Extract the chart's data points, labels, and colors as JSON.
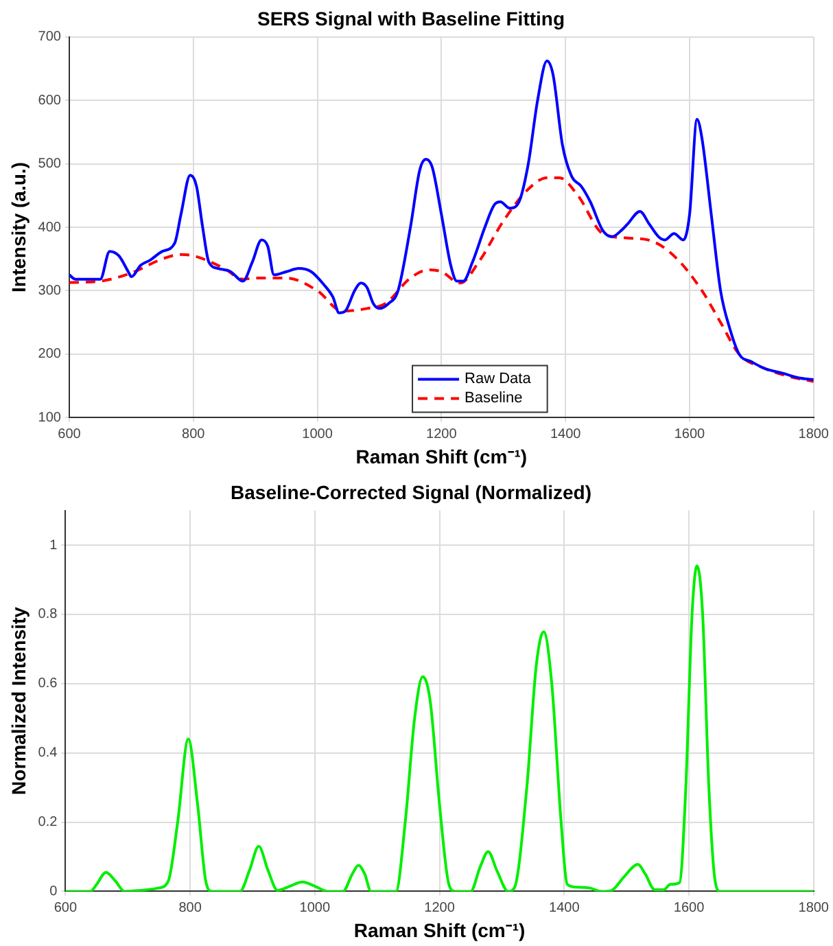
{
  "chart_data": [
    {
      "type": "line",
      "title": "SERS Signal with Baseline Fitting",
      "xlabel": "Raman Shift (cm⁻¹)",
      "ylabel": "Intensity (a.u.)",
      "xlim": [
        600,
        1800
      ],
      "xticks": [
        600,
        800,
        1000,
        1200,
        1400,
        1600,
        1800
      ],
      "ylim": [
        100,
        700
      ],
      "yticks": [
        100,
        200,
        300,
        400,
        500,
        600,
        700
      ],
      "grid": true,
      "legend": "bottom",
      "series": [
        {
          "name": "Raw Data",
          "color": "#0000ff",
          "line_style": "solid",
          "x": [
            600,
            610,
            630,
            650,
            665,
            680,
            695,
            700,
            715,
            730,
            750,
            770,
            780,
            795,
            805,
            815,
            825,
            840,
            860,
            880,
            895,
            910,
            920,
            930,
            950,
            970,
            990,
            1010,
            1025,
            1035,
            1045,
            1060,
            1070,
            1080,
            1090,
            1100,
            1115,
            1130,
            1150,
            1165,
            1175,
            1185,
            1200,
            1215,
            1225,
            1235,
            1250,
            1270,
            1285,
            1295,
            1310,
            1325,
            1340,
            1355,
            1370,
            1380,
            1395,
            1410,
            1425,
            1440,
            1460,
            1475,
            1490,
            1500,
            1520,
            1535,
            1550,
            1560,
            1575,
            1590,
            1600,
            1612,
            1620,
            1635,
            1650,
            1665,
            1680,
            1700,
            1720,
            1750,
            1780,
            1800
          ],
          "values": [
            325,
            318,
            318,
            318,
            362,
            355,
            330,
            322,
            340,
            348,
            362,
            375,
            420,
            482,
            465,
            400,
            345,
            335,
            330,
            315,
            345,
            380,
            370,
            325,
            330,
            335,
            330,
            310,
            290,
            265,
            268,
            300,
            312,
            305,
            280,
            272,
            280,
            300,
            400,
            490,
            507,
            495,
            420,
            340,
            315,
            315,
            345,
            400,
            435,
            440,
            430,
            440,
            500,
            600,
            662,
            640,
            530,
            480,
            465,
            440,
            395,
            385,
            395,
            405,
            425,
            405,
            385,
            380,
            390,
            380,
            420,
            570,
            540,
            420,
            300,
            240,
            200,
            188,
            178,
            170,
            162,
            160
          ]
        },
        {
          "name": "Baseline",
          "color": "#ff0000",
          "line_style": "dashed",
          "x": [
            600,
            650,
            700,
            750,
            780,
            800,
            850,
            880,
            900,
            950,
            1000,
            1040,
            1080,
            1110,
            1150,
            1180,
            1200,
            1230,
            1260,
            1300,
            1340,
            1370,
            1390,
            1420,
            1460,
            1500,
            1540,
            1580,
            1620,
            1650,
            1680,
            1720,
            1760,
            1800
          ],
          "values": [
            313,
            315,
            328,
            350,
            357,
            355,
            335,
            318,
            320,
            320,
            300,
            268,
            272,
            280,
            320,
            333,
            330,
            312,
            345,
            410,
            460,
            478,
            478,
            450,
            390,
            383,
            378,
            350,
            300,
            250,
            200,
            178,
            165,
            157
          ]
        }
      ]
    },
    {
      "type": "line",
      "title": "Baseline-Corrected Signal (Normalized)",
      "xlabel": "Raman Shift (cm⁻¹)",
      "ylabel": "Normalized Intensity",
      "xlim": [
        600,
        1800
      ],
      "xticks": [
        600,
        800,
        1000,
        1200,
        1400,
        1600,
        1800
      ],
      "ylim": [
        0,
        1.1
      ],
      "yticks": [
        0,
        0.2,
        0.4,
        0.6,
        0.8,
        1
      ],
      "grid": true,
      "series": [
        {
          "color": "#00ee00",
          "line_style": "solid",
          "x": [
            600,
            640,
            650,
            665,
            680,
            695,
            720,
            750,
            765,
            780,
            797,
            812,
            825,
            835,
            880,
            895,
            910,
            925,
            940,
            960,
            980,
            1000,
            1020,
            1045,
            1060,
            1070,
            1080,
            1090,
            1130,
            1145,
            1160,
            1173,
            1185,
            1200,
            1215,
            1225,
            1250,
            1265,
            1278,
            1292,
            1310,
            1320,
            1340,
            1355,
            1367,
            1380,
            1395,
            1405,
            1420,
            1440,
            1460,
            1475,
            1495,
            1510,
            1518,
            1530,
            1545,
            1560,
            1570,
            1585,
            1595,
            1605,
            1613,
            1622,
            1632,
            1642,
            1650,
            1800
          ],
          "values": [
            0,
            0,
            0.02,
            0.055,
            0.03,
            0,
            0.003,
            0.01,
            0.03,
            0.2,
            0.44,
            0.25,
            0.03,
            0,
            0,
            0.06,
            0.13,
            0.06,
            0.003,
            0.015,
            0.027,
            0.015,
            0,
            0,
            0.05,
            0.075,
            0.05,
            0,
            0,
            0.2,
            0.5,
            0.62,
            0.55,
            0.25,
            0.02,
            0,
            0,
            0.07,
            0.115,
            0.06,
            0,
            0.01,
            0.3,
            0.65,
            0.75,
            0.6,
            0.2,
            0.02,
            0.012,
            0.01,
            0,
            0.002,
            0.04,
            0.07,
            0.078,
            0.05,
            0.005,
            0.005,
            0.02,
            0.025,
            0.3,
            0.8,
            0.94,
            0.8,
            0.3,
            0.03,
            0,
            0
          ]
        }
      ]
    }
  ]
}
